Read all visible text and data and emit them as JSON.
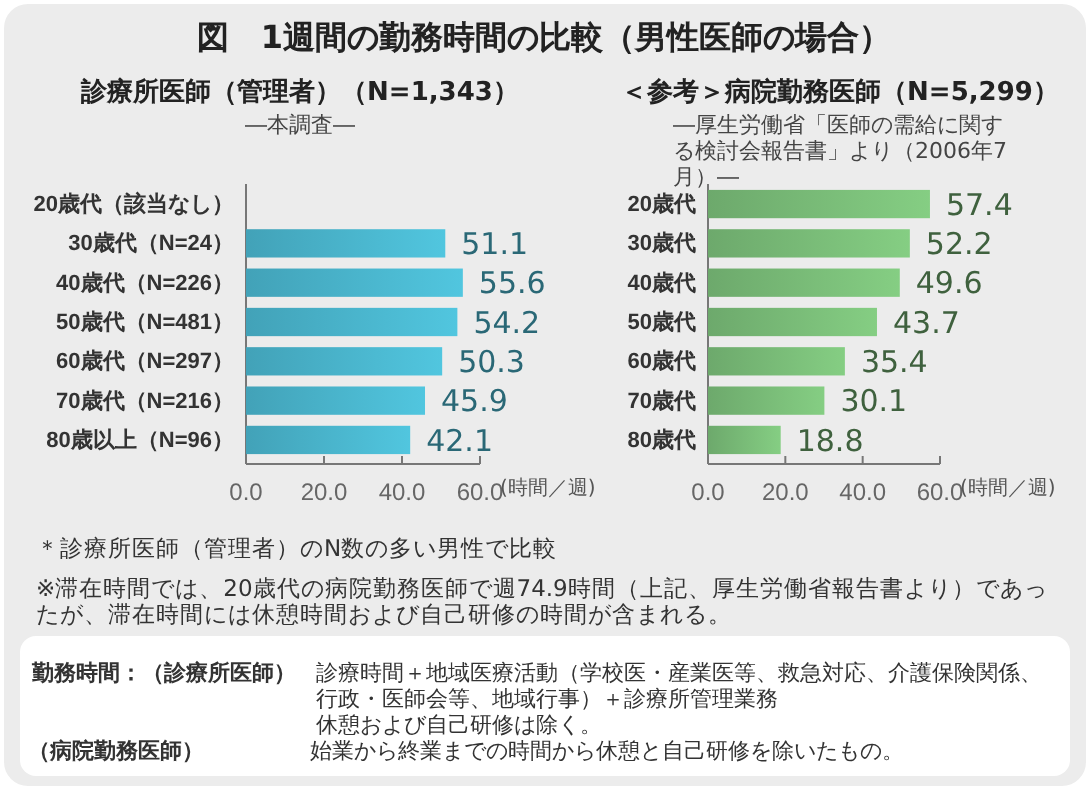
{
  "chart_data": [
    {
      "type": "other",
      "title": "図　1週間の勤務時間の比較（男性医師の場合）",
      "annotations": [
        "＊診療所医師（管理者）のN数の多い男性で比較",
        "※滞在時間では、20歳代の病院勤務医師で週74.9時間（上記、厚生労働省報告書より）であったが、滞在時間には休憩時間および自己研修の時間が含まれる。",
        "勤務時間：（診療所医師）",
        "診療時間＋地域医療活動（学校医・産業医等、救急対応、介護保険関係、行政・医師会等、地域行事）＋診療所管理業務",
        "休憩および自己研修は除く。",
        "（病院勤務医師）",
        "始業から終業までの時間から休憩と自己研修を除いたもの。"
      ]
    },
    {
      "type": "bar",
      "orientation": "horizontal",
      "title": "診療所医師（管理者）（N=1,343）",
      "subtitle": "―本調査―",
      "xlabel": "(時間／週)",
      "categories": [
        "20歳代（該当なし）",
        "30歳代（N=24）",
        "40歳代（N=226）",
        "50歳代（N=481）",
        "60歳代（N=297）",
        "70歳代（N=216）",
        "80歳以上（N=96）"
      ],
      "values": [
        null,
        51.1,
        55.6,
        54.2,
        50.3,
        45.9,
        42.1
      ],
      "color": "#4bb8d0",
      "data_labels": true,
      "xlim": [
        0,
        60
      ],
      "xticks": [
        {
          "value": 0,
          "label": "0.0"
        },
        {
          "value": 20,
          "label": "20.0"
        },
        {
          "value": 40,
          "label": "40.0"
        },
        {
          "value": 60,
          "label": "60.0"
        }
      ]
    },
    {
      "type": "bar",
      "orientation": "horizontal",
      "title": "＜参考＞病院勤務医師（N=5,299）",
      "subtitle": "―厚生労働省「医師の需給に関する検討会報告書」より（2006年7月）―",
      "xlabel": "(時間／週)",
      "categories": [
        "20歳代",
        "30歳代",
        "40歳代",
        "50歳代",
        "60歳代",
        "70歳代",
        "80歳代"
      ],
      "values": [
        57.4,
        52.2,
        49.6,
        43.7,
        35.4,
        30.1,
        18.8
      ],
      "color": "#7cc07a",
      "data_labels": true,
      "xlim": [
        0,
        60
      ],
      "xticks": [
        {
          "value": 0,
          "label": "0.0"
        },
        {
          "value": 20,
          "label": "20.0"
        },
        {
          "value": 40,
          "label": "40.0"
        },
        {
          "value": 60,
          "label": "60.0"
        }
      ]
    }
  ]
}
